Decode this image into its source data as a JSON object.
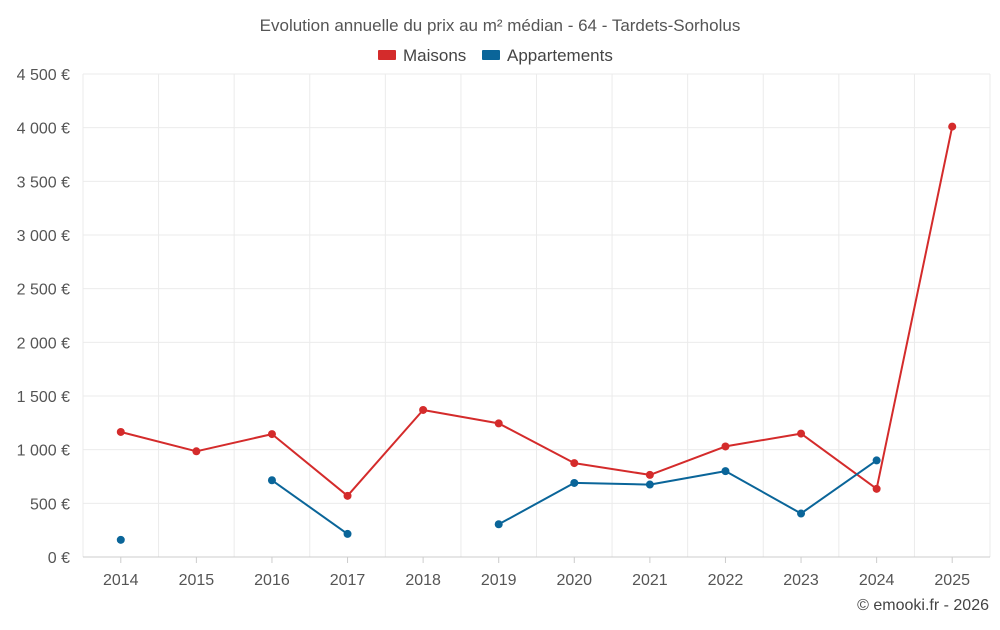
{
  "chart_data": {
    "type": "line",
    "title": "Evolution annuelle du prix au m² médian - 64 - Tardets-Sorholus",
    "categories": [
      "2014",
      "2015",
      "2016",
      "2017",
      "2018",
      "2019",
      "2020",
      "2021",
      "2022",
      "2023",
      "2024",
      "2025"
    ],
    "series": [
      {
        "name": "Maisons",
        "color": "#d42b2b",
        "values": [
          1165,
          985,
          1145,
          570,
          1370,
          1245,
          875,
          765,
          1030,
          1150,
          635,
          4010
        ]
      },
      {
        "name": "Appartements",
        "color": "#0a6599",
        "values": [
          160,
          null,
          715,
          215,
          null,
          305,
          690,
          675,
          800,
          405,
          900,
          null
        ]
      }
    ],
    "ylim": [
      0,
      4500
    ],
    "yticks": [
      0,
      500,
      1000,
      1500,
      2000,
      2500,
      3000,
      3500,
      4000,
      4500
    ],
    "ytick_labels": [
      "0 €",
      "500 €",
      "1 000 €",
      "1 500 €",
      "2 000 €",
      "2 500 €",
      "3 000 €",
      "3 500 €",
      "4 000 €",
      "4 500 €"
    ],
    "grid": true,
    "legend_position": "top-center",
    "credit": "© emooki.fr - 2026"
  }
}
